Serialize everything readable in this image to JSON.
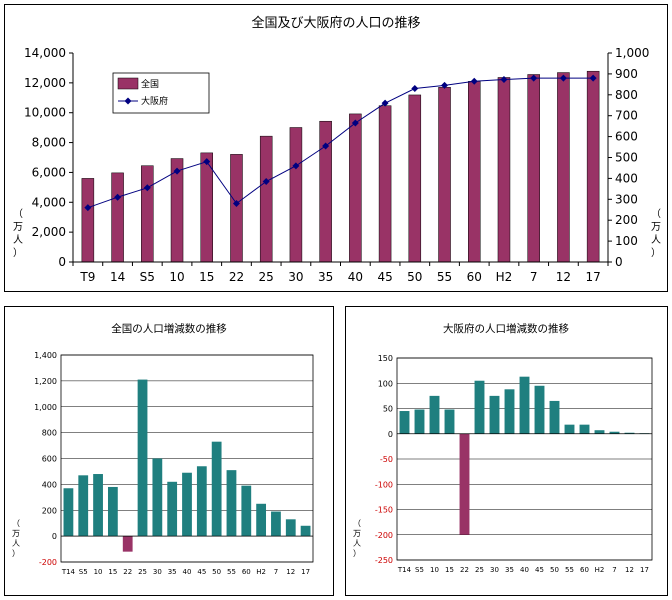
{
  "chart_data": [
    {
      "type": "bar+line",
      "title": "全国及び大阪府の人口の推移",
      "categories": [
        "T9",
        "14",
        "S5",
        "10",
        "15",
        "22",
        "25",
        "30",
        "35",
        "40",
        "45",
        "50",
        "55",
        "60",
        "H2",
        "7",
        "12",
        "17"
      ],
      "series": [
        {
          "name": "全国",
          "type": "bar",
          "axis": "left",
          "color": "#993366",
          "values": [
            5600,
            5970,
            6450,
            6930,
            7310,
            7210,
            8430,
            9010,
            9430,
            9920,
            10470,
            11190,
            11700,
            12100,
            12360,
            12560,
            12690,
            12780
          ]
        },
        {
          "name": "大阪府",
          "type": "line",
          "axis": "right",
          "color": "#000080",
          "values": [
            260,
            310,
            355,
            435,
            480,
            280,
            385,
            460,
            555,
            665,
            760,
            830,
            845,
            865,
            873,
            880,
            880,
            880
          ]
        }
      ],
      "yleft_ticks": [
        "0",
        "2,000",
        "4,000",
        "6,000",
        "8,000",
        "10,000",
        "12,000",
        "14,000"
      ],
      "yleft_lim": [
        0,
        14000
      ],
      "yright_ticks": [
        "0",
        "100",
        "200",
        "300",
        "400",
        "500",
        "600",
        "700",
        "800",
        "900",
        "1,000"
      ],
      "yright_lim": [
        0,
        1000
      ],
      "yleft_unit": [
        "（",
        "万",
        "人",
        "）"
      ],
      "yright_unit": [
        "（",
        "万",
        "人",
        "）"
      ],
      "grid": false,
      "legend": "top-left"
    },
    {
      "type": "bar",
      "title": "全国の人口増減数の推移",
      "categories": [
        "T14",
        "S5",
        "10",
        "15",
        "22",
        "25",
        "30",
        "35",
        "40",
        "45",
        "50",
        "55",
        "60",
        "H2",
        "7",
        "12",
        "17"
      ],
      "values": [
        370,
        470,
        480,
        380,
        -120,
        1210,
        600,
        420,
        490,
        540,
        730,
        510,
        390,
        250,
        190,
        130,
        80
      ],
      "ylim": [
        -200,
        1400
      ],
      "y_ticks": [
        "-200",
        "0",
        "200",
        "400",
        "600",
        "800",
        "1,000",
        "1,200",
        "1,400"
      ],
      "positive_color": "#1f7f7f",
      "negative_color": "#993366",
      "negative_tick_color": "#cc0000",
      "yunit": [
        "（",
        "万",
        "人",
        "）"
      ],
      "grid": true
    },
    {
      "type": "bar",
      "title": "大阪府の人口増減数の推移",
      "categories": [
        "T14",
        "S5",
        "10",
        "15",
        "22",
        "25",
        "30",
        "35",
        "40",
        "45",
        "50",
        "55",
        "60",
        "H2",
        "7",
        "12",
        "17"
      ],
      "values": [
        45,
        48,
        75,
        48,
        -200,
        105,
        75,
        88,
        113,
        95,
        65,
        18,
        18,
        7,
        4,
        2,
        1
      ],
      "ylim": [
        -250,
        150
      ],
      "y_ticks": [
        "-250",
        "-200",
        "-150",
        "-100",
        "-50",
        "0",
        "50",
        "100",
        "150"
      ],
      "positive_color": "#1f7f7f",
      "negative_color": "#993366",
      "negative_tick_color": "#cc0000",
      "yunit": [
        "（",
        "万",
        "人",
        "）"
      ],
      "grid": true
    }
  ]
}
